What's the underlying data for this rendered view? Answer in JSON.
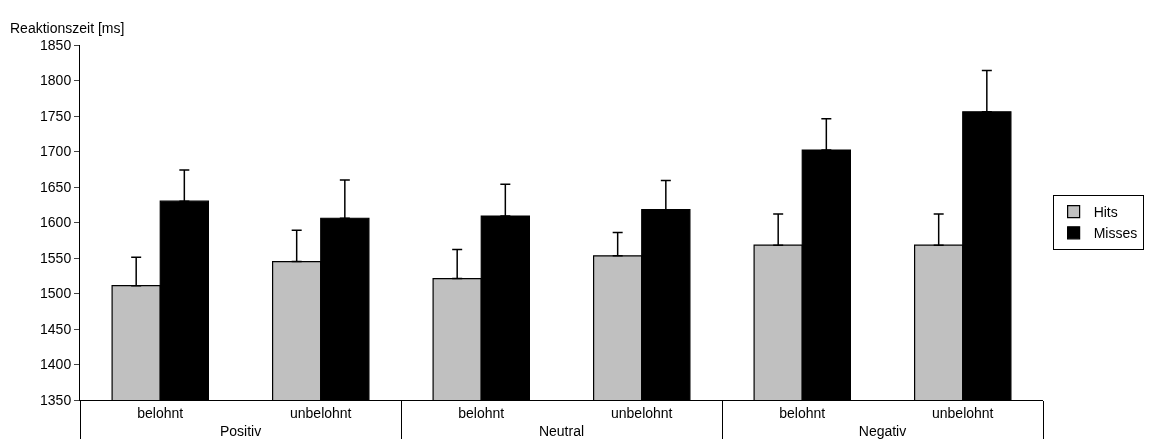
{
  "chart_data": {
    "type": "bar",
    "ylabel": "Reaktionszeit [ms]",
    "categories": [
      "belohnt",
      "unbelohnt",
      "belohnt",
      "unbelohnt",
      "belohnt",
      "unbelohnt"
    ],
    "annotations": [
      "Positiv",
      "Neutral",
      "Negativ"
    ],
    "series": [
      {
        "name": "Hits",
        "color": "#c0c0c0",
        "values": [
          1511,
          1545,
          1521,
          1553,
          1568,
          1568
        ],
        "errors": [
          [
            1511,
            1551
          ],
          [
            1545,
            1589
          ],
          [
            1521,
            1562
          ],
          [
            1553,
            1586
          ],
          [
            1568,
            1612
          ],
          [
            1568,
            1612
          ]
        ]
      },
      {
        "name": "Misses",
        "color": "#000000",
        "values": [
          1630,
          1606,
          1609,
          1618,
          1702,
          1756
        ],
        "errors": [
          [
            1630,
            1674
          ],
          [
            1606,
            1660
          ],
          [
            1609,
            1654
          ],
          [
            1618,
            1659
          ],
          [
            1702,
            1746
          ],
          [
            1756,
            1814
          ]
        ]
      }
    ],
    "ylim": [
      1350,
      1850
    ],
    "yticks": [
      1350,
      1400,
      1450,
      1500,
      1550,
      1600,
      1650,
      1700,
      1750,
      1800,
      1850
    ],
    "legend": "right"
  }
}
